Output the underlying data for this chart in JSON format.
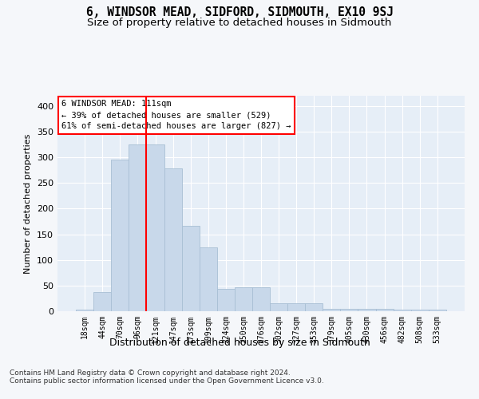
{
  "title": "6, WINDSOR MEAD, SIDFORD, SIDMOUTH, EX10 9SJ",
  "subtitle": "Size of property relative to detached houses in Sidmouth",
  "xlabel": "Distribution of detached houses by size in Sidmouth",
  "ylabel": "Number of detached properties",
  "bar_color": "#c8d8ea",
  "bar_edgecolor": "#a8bfd4",
  "background_color": "#e6eef7",
  "grid_color": "#ffffff",
  "fig_background": "#f5f7fa",
  "categories": [
    "18sqm",
    "44sqm",
    "70sqm",
    "96sqm",
    "121sqm",
    "147sqm",
    "173sqm",
    "199sqm",
    "224sqm",
    "250sqm",
    "276sqm",
    "302sqm",
    "327sqm",
    "353sqm",
    "379sqm",
    "405sqm",
    "430sqm",
    "456sqm",
    "482sqm",
    "508sqm",
    "533sqm"
  ],
  "values": [
    3,
    38,
    295,
    325,
    325,
    278,
    166,
    124,
    44,
    46,
    46,
    15,
    15,
    15,
    5,
    5,
    5,
    5,
    3,
    3,
    3
  ],
  "ylim": [
    0,
    420
  ],
  "yticks": [
    0,
    50,
    100,
    150,
    200,
    250,
    300,
    350,
    400
  ],
  "red_line_x": 3.5,
  "annotation_text": "6 WINDSOR MEAD: 111sqm\n← 39% of detached houses are smaller (529)\n61% of semi-detached houses are larger (827) →",
  "footer_text": "Contains HM Land Registry data © Crown copyright and database right 2024.\nContains public sector information licensed under the Open Government Licence v3.0."
}
